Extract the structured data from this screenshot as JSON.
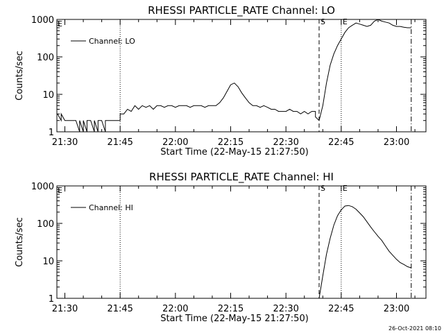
{
  "chart_data": [
    {
      "type": "line",
      "title": "RHESSI PARTICLE_RATE Channel: LO",
      "xlabel": "Start Time (22-May-15 21:27:50)",
      "ylabel": "Counts/sec",
      "yscale": "log",
      "ylim": [
        1,
        1000
      ],
      "xlim": [
        "21:27:50",
        "23:08:00"
      ],
      "x_ticks": [
        "21:30",
        "21:45",
        "22:00",
        "22:15",
        "22:30",
        "22:45",
        "23:00"
      ],
      "y_ticks": [
        "1",
        "10",
        "100",
        "1000"
      ],
      "legend": {
        "label": "Channel: LO",
        "position": "top-left"
      },
      "corner_label": "E",
      "markers": [
        {
          "time": "21:45",
          "style": "dotted",
          "label": ""
        },
        {
          "time": "22:39",
          "style": "dashed",
          "label": "S"
        },
        {
          "time": "22:45",
          "style": "dotted",
          "label": "E"
        },
        {
          "time": "23:04",
          "style": "dashdot",
          "label": ""
        }
      ],
      "series": [
        {
          "name": "Channel: LO",
          "x": [
            "21:28",
            "21:29",
            "21:29",
            "21:30",
            "21:31",
            "21:33",
            "21:34",
            "21:34",
            "21:35",
            "21:35",
            "21:36",
            "21:36",
            "21:37",
            "21:38",
            "21:38",
            "21:39",
            "21:39",
            "21:40",
            "21:41",
            "21:41",
            "21:42",
            "21:43",
            "21:45",
            "21:45",
            "21:46",
            "21:47",
            "21:48",
            "21:49",
            "21:50",
            "21:51",
            "21:52",
            "21:53",
            "21:54",
            "21:55",
            "21:56",
            "21:57",
            "21:58",
            "21:59",
            "22:00",
            "22:01",
            "22:02",
            "22:03",
            "22:04",
            "22:05",
            "22:06",
            "22:07",
            "22:08",
            "22:09",
            "22:10",
            "22:11",
            "22:12",
            "22:13",
            "22:14",
            "22:15",
            "22:16",
            "22:17",
            "22:18",
            "22:19",
            "22:20",
            "22:21",
            "22:22",
            "22:23",
            "22:24",
            "22:25",
            "22:26",
            "22:27",
            "22:28",
            "22:29",
            "22:30",
            "22:31",
            "22:32",
            "22:33",
            "22:34",
            "22:35",
            "22:36",
            "22:37",
            "22:38",
            "22:38",
            "22:39",
            "22:40",
            "22:41",
            "22:42",
            "22:43",
            "22:44",
            "22:45",
            "22:46",
            "22:47",
            "22:48",
            "22:49",
            "22:50",
            "22:51",
            "22:52",
            "22:53",
            "22:54",
            "22:55",
            "22:56",
            "22:57",
            "22:58",
            "22:59",
            "23:00",
            "23:01",
            "23:02",
            "23:03",
            "23:04"
          ],
          "values": [
            3,
            2,
            3,
            2,
            2,
            2,
            1,
            2,
            1,
            2,
            1,
            2,
            2,
            1,
            2,
            1,
            2,
            2,
            1,
            2,
            2,
            2,
            2,
            3,
            3,
            4,
            3.5,
            5,
            4,
            5,
            4.5,
            5,
            4,
            5,
            5,
            4.5,
            5,
            5,
            4.5,
            5,
            5,
            5,
            4.5,
            5,
            5,
            5,
            4.5,
            5,
            5,
            5,
            6,
            8,
            12,
            18,
            20,
            16,
            11,
            8,
            6,
            5,
            5,
            4.5,
            5,
            4.5,
            4,
            4,
            3.5,
            3.5,
            3.5,
            4,
            3.5,
            3.5,
            3,
            3.5,
            3,
            3.5,
            3.5,
            2.5,
            2,
            5,
            20,
            60,
            120,
            200,
            300,
            450,
            600,
            700,
            800,
            750,
            700,
            650,
            700,
            900,
            1000,
            900,
            850,
            800,
            700,
            650,
            650,
            620,
            600,
            600
          ]
        }
      ]
    },
    {
      "type": "line",
      "title": "RHESSI PARTICLE_RATE Channel: HI",
      "xlabel": "Start Time (22-May-15 21:27:50)",
      "ylabel": "Counts/sec",
      "yscale": "log",
      "ylim": [
        1,
        1000
      ],
      "xlim": [
        "21:27:50",
        "23:08:00"
      ],
      "x_ticks": [
        "21:30",
        "21:45",
        "22:00",
        "22:15",
        "22:30",
        "22:45",
        "23:00"
      ],
      "y_ticks": [
        "1",
        "10",
        "100",
        "1000"
      ],
      "legend": {
        "label": "Channel: HI",
        "position": "top-left"
      },
      "corner_label": "E",
      "markers": [
        {
          "time": "21:45",
          "style": "dotted",
          "label": ""
        },
        {
          "time": "22:39",
          "style": "dashed",
          "label": "S"
        },
        {
          "time": "22:45",
          "style": "dotted",
          "label": "E"
        },
        {
          "time": "23:04",
          "style": "dashdot",
          "label": ""
        }
      ],
      "series": [
        {
          "name": "Channel: HI",
          "x": [
            "22:39",
            "22:40",
            "22:41",
            "22:42",
            "22:43",
            "22:44",
            "22:45",
            "22:46",
            "22:47",
            "22:48",
            "22:49",
            "22:50",
            "22:51",
            "22:52",
            "22:53",
            "22:54",
            "22:55",
            "22:56",
            "22:57",
            "22:58",
            "22:59",
            "23:00",
            "23:01",
            "23:02",
            "23:03",
            "23:04"
          ],
          "values": [
            1,
            4,
            15,
            40,
            90,
            160,
            230,
            290,
            300,
            280,
            240,
            190,
            150,
            110,
            80,
            60,
            45,
            35,
            25,
            18,
            14,
            11,
            9,
            8,
            7,
            6.5
          ]
        }
      ]
    }
  ],
  "footer": {
    "timestamp": "26-Oct-2021 08:10"
  }
}
